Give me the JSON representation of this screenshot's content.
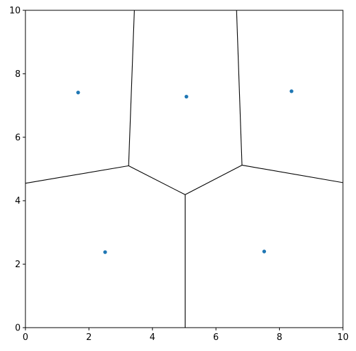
{
  "chart_data": {
    "type": "scatter",
    "title": "",
    "xlabel": "",
    "ylabel": "",
    "xlim": [
      0,
      10
    ],
    "ylim": [
      0,
      10
    ],
    "grid": false,
    "x_ticks": [
      0,
      2,
      4,
      6,
      8,
      10
    ],
    "y_ticks": [
      0,
      2,
      4,
      6,
      8,
      10
    ],
    "x_tick_labels": [
      "0",
      "2",
      "4",
      "6",
      "8",
      "10"
    ],
    "y_tick_labels": [
      "0",
      "2",
      "4",
      "6",
      "8",
      "10"
    ],
    "points": [
      {
        "x": 1.66,
        "y": 7.41
      },
      {
        "x": 5.07,
        "y": 7.28
      },
      {
        "x": 8.38,
        "y": 7.45
      },
      {
        "x": 2.51,
        "y": 2.38
      },
      {
        "x": 7.52,
        "y": 2.4
      }
    ],
    "point_color": "#1f77b4",
    "edge_color": "#000000",
    "voronoi_edges": [
      [
        [
          3.43,
          10.0
        ],
        [
          3.25,
          5.1
        ]
      ],
      [
        [
          6.65,
          10.0
        ],
        [
          6.82,
          5.12
        ]
      ],
      [
        [
          0.0,
          4.55
        ],
        [
          3.25,
          5.1
        ]
      ],
      [
        [
          3.25,
          5.1
        ],
        [
          5.03,
          4.19
        ]
      ],
      [
        [
          6.82,
          5.12
        ],
        [
          5.03,
          4.19
        ]
      ],
      [
        [
          6.82,
          5.12
        ],
        [
          10.0,
          4.57
        ]
      ],
      [
        [
          5.03,
          4.19
        ],
        [
          5.03,
          0.0
        ]
      ]
    ]
  }
}
